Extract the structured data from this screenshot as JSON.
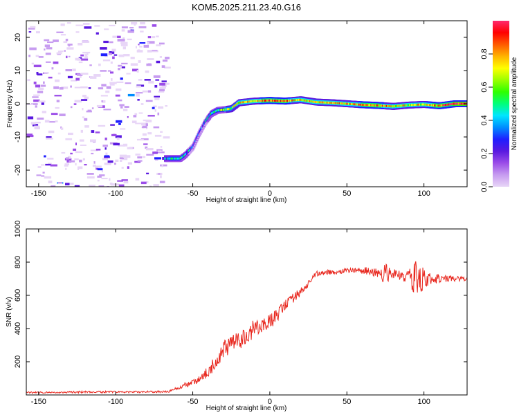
{
  "title": "KOM5.2025.211.23.40.G16",
  "chart_data": [
    {
      "type": "heatmap",
      "xlabel": "Height of straight line (km)",
      "ylabel": "Frequency (Hz)",
      "xlim": [
        -158,
        128
      ],
      "ylim": [
        -25,
        25
      ],
      "xticks": [
        -150,
        -100,
        -50,
        0,
        50,
        100
      ],
      "yticks": [
        -20,
        -10,
        0,
        10,
        20
      ],
      "colorbar": {
        "label": "Normalized spectral amplitude",
        "range": [
          0,
          1
        ],
        "ticks": [
          "0.0",
          "0.2",
          "0.4",
          "0.6",
          "0.8"
        ],
        "colors": [
          "#e8d6f7",
          "#c79cf0",
          "#9b4de8",
          "#5a19e0",
          "#1f1fff",
          "#008cff",
          "#00e6ff",
          "#00ff7a",
          "#2eff00",
          "#9bff00",
          "#ffff00",
          "#ffb300",
          "#ff5a00",
          "#ff0000",
          "#ff2a6e"
        ]
      },
      "noise_region_x": [
        -158,
        -68
      ],
      "track": {
        "x": [
          -68,
          -58,
          -55,
          -50,
          -46,
          -42,
          -38,
          -34,
          -30,
          -25,
          -20,
          -10,
          0,
          10,
          20,
          30,
          40,
          50,
          60,
          70,
          80,
          90,
          100,
          110,
          120,
          128
        ],
        "freq": [
          -16.5,
          -16.5,
          -15.5,
          -13,
          -9,
          -5.5,
          -3,
          -2,
          -1.8,
          -1.5,
          0.3,
          0.8,
          1.0,
          0.8,
          1.2,
          0.5,
          0.3,
          0,
          -0.3,
          -0.5,
          -0.8,
          -0.4,
          -0.2,
          -0.6,
          0,
          0
        ],
        "amplitude": [
          0.4,
          0.55,
          0.45,
          0.3,
          0.3,
          0.35,
          0.45,
          0.5,
          0.55,
          0.6,
          0.7,
          0.72,
          0.85,
          0.8,
          0.7,
          0.72,
          0.75,
          0.7,
          0.78,
          0.8,
          0.72,
          0.68,
          0.75,
          0.8,
          0.9,
          0.95
        ]
      }
    },
    {
      "type": "line",
      "xlabel": "Height of straight line (km)",
      "ylabel": "SNR (v/v)",
      "xlim": [
        -158,
        128
      ],
      "ylim": [
        0,
        1000
      ],
      "xticks": [
        -150,
        -100,
        -50,
        0,
        50,
        100
      ],
      "yticks": [
        200,
        400,
        600,
        800,
        1000
      ],
      "line_color": "#e8261d",
      "series": [
        {
          "x": [
            -158,
            -140,
            -120,
            -100,
            -80,
            -66,
            -60,
            -55,
            -50,
            -45,
            -40,
            -35,
            -30,
            -25,
            -20,
            -15,
            -10,
            -5,
            0,
            5,
            10,
            15,
            20,
            25,
            30,
            35,
            40,
            45,
            50,
            55,
            60,
            65,
            70,
            75,
            80,
            85,
            90,
            95,
            100,
            105,
            110,
            115,
            120,
            128
          ],
          "y": [
            15,
            15,
            18,
            18,
            18,
            20,
            40,
            60,
            70,
            100,
            140,
            200,
            270,
            310,
            330,
            360,
            400,
            420,
            440,
            480,
            540,
            580,
            620,
            670,
            730,
            740,
            740,
            745,
            750,
            750,
            750,
            745,
            740,
            730,
            725,
            720,
            710,
            700,
            700,
            695,
            700,
            700,
            700,
            700
          ],
          "noise": [
            6,
            6,
            6,
            6,
            6,
            6,
            10,
            15,
            20,
            25,
            35,
            45,
            55,
            60,
            60,
            55,
            55,
            50,
            45,
            40,
            35,
            30,
            25,
            20,
            15,
            15,
            15,
            15,
            15,
            15,
            20,
            25,
            45,
            60,
            35,
            30,
            40,
            110,
            80,
            30,
            25,
            20,
            15,
            15
          ]
        }
      ]
    }
  ]
}
